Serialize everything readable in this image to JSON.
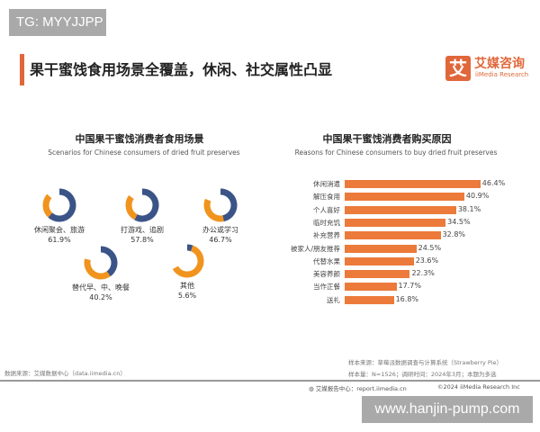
{
  "watermarks": {
    "tg": "TG: MYYJJPP",
    "site": "www.hanjin-pump.com"
  },
  "header": {
    "title": "果干蜜饯食用场景全覆盖，休闲、社交属性凸显",
    "logo_mark": "艾",
    "logo_cn": "艾媒咨询",
    "logo_en": "iiMedia Research"
  },
  "colors": {
    "accent": "#e0673a",
    "blue": "#3b5488",
    "orange": "#f0941e",
    "bar": "#ec7a3a"
  },
  "chart_data": [
    {
      "type": "pie",
      "title": "中国果干蜜饯消费者食用场景",
      "subtitle": "Scenarios for Chinese consumers of dried fruit preserves",
      "categories": [
        "休闲聚会、旅游",
        "打游戏、追剧",
        "办公或学习",
        "替代早、中、晚餐",
        "其他"
      ],
      "values": [
        61.9,
        57.8,
        46.7,
        40.2,
        5.6
      ],
      "value_labels": [
        "61.9%",
        "57.8%",
        "46.7%",
        "40.2%",
        "5.6%"
      ]
    },
    {
      "type": "bar",
      "title": "中国果干蜜饯消费者购买原因",
      "subtitle": "Reasons for Chinese consumers to buy dried fruit preserves",
      "categories": [
        "休闲消遣",
        "解压食用",
        "个人喜好",
        "临时充饥",
        "补充营养",
        "被家人/朋友推荐",
        "代替水果",
        "美容养颜",
        "当作正餐",
        "送礼"
      ],
      "values": [
        46.4,
        40.9,
        38.1,
        34.5,
        32.8,
        24.5,
        23.6,
        22.3,
        17.7,
        16.8
      ],
      "value_labels": [
        "46.4%",
        "40.9%",
        "38.1%",
        "34.5%",
        "32.8%",
        "24.5%",
        "23.6%",
        "22.3%",
        "17.7%",
        "16.8%"
      ],
      "unit": "%"
    }
  ],
  "footer": {
    "source": "数据来源：艾媒数据中心（data.iimedia.cn）",
    "sample_source": "样本来源：草莓派数据调查与计算系统（Strawberry Pie）",
    "sample_size": "样本量：N=1526；调研时间：2024年3月；本题为多选",
    "report": "艾媒报告中心：report.iimedia.cn",
    "copyright": "©2024  iiMedia Research Inc"
  }
}
